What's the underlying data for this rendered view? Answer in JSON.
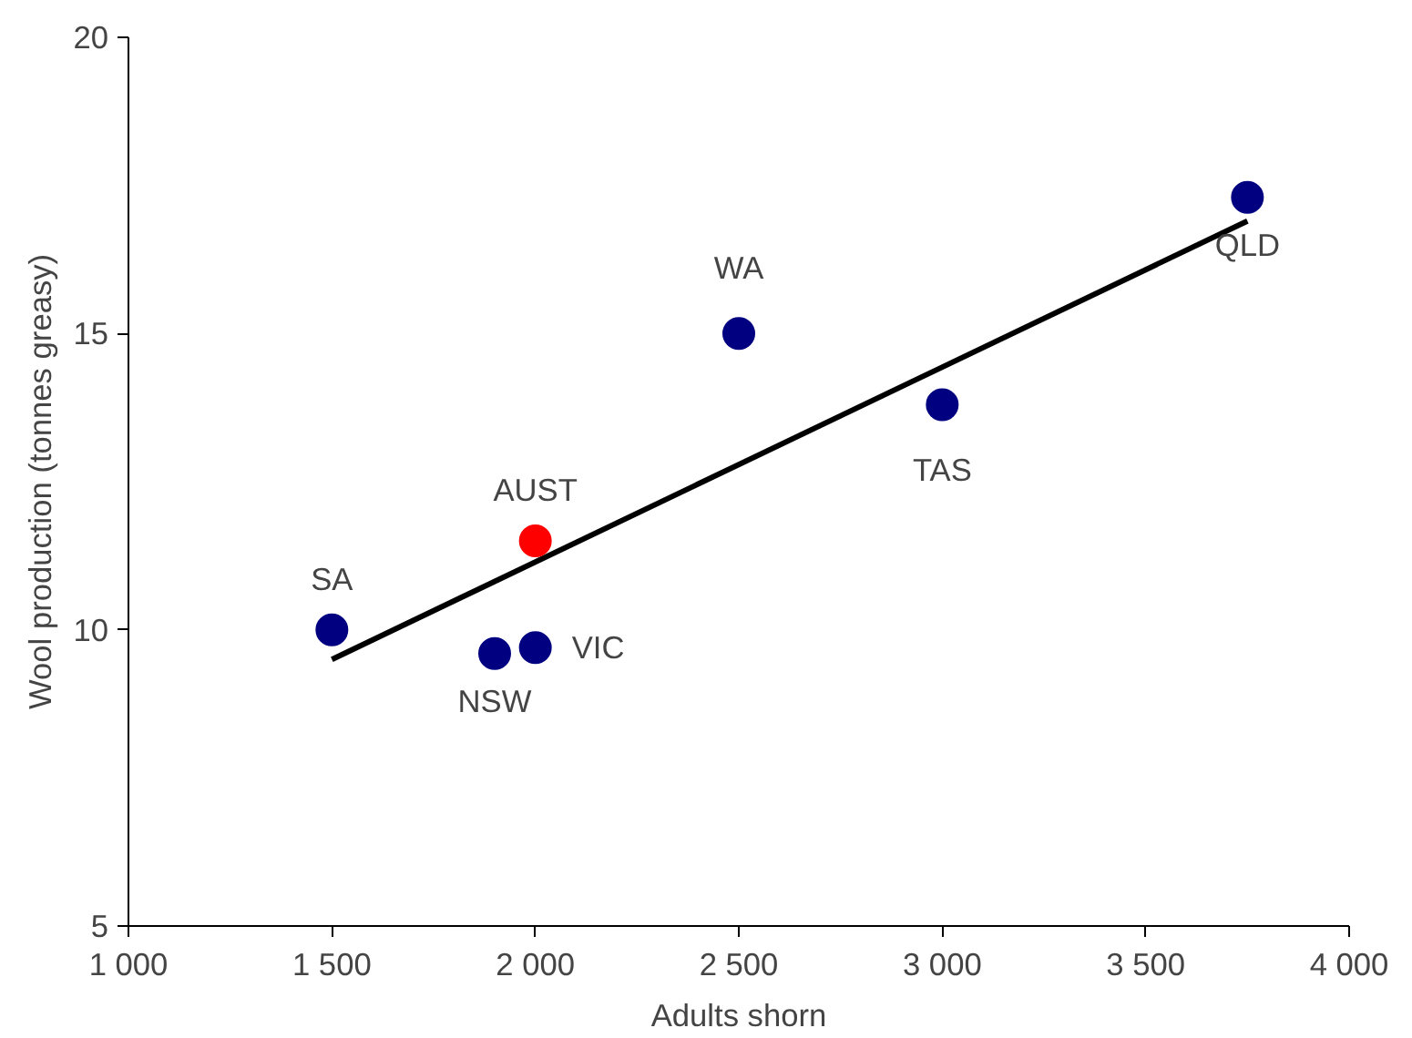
{
  "chart_data": {
    "type": "scatter",
    "xlabel": "Adults shorn",
    "ylabel": "Wool production (tonnes greasy)",
    "xlim": [
      1000,
      4000
    ],
    "ylim": [
      5,
      20
    ],
    "xticks": [
      {
        "value": 1000,
        "label": "1 000"
      },
      {
        "value": 1500,
        "label": "1 500"
      },
      {
        "value": 2000,
        "label": "2 000"
      },
      {
        "value": 2500,
        "label": "2 500"
      },
      {
        "value": 3000,
        "label": "3 000"
      },
      {
        "value": 3500,
        "label": "3 500"
      },
      {
        "value": 4000,
        "label": "4 000"
      }
    ],
    "yticks": [
      5,
      10,
      15,
      20
    ],
    "grid": false,
    "marker": "circle",
    "series": [
      {
        "type": "line",
        "marker": "none",
        "color": "#000000",
        "x": [
          1500,
          3750
        ],
        "values": [
          9.5,
          16.9
        ]
      },
      {
        "color": "#000080",
        "x": [
          1500,
          1900,
          2000,
          2500,
          3000,
          3750
        ],
        "values": [
          10.0,
          9.6,
          9.7,
          15.0,
          13.8,
          17.3
        ]
      },
      {
        "color": "#ff0000",
        "x": [
          2000
        ],
        "values": [
          11.5
        ]
      }
    ],
    "annotations": [
      {
        "text": "SA",
        "x": 1500,
        "y": 10.0
      },
      {
        "text": "NSW",
        "x": 1900,
        "y": 9.6
      },
      {
        "text": "VIC",
        "x": 2000,
        "y": 9.7
      },
      {
        "text": "AUST",
        "x": 2000,
        "y": 11.5
      },
      {
        "text": "WA",
        "x": 2500,
        "y": 15.0
      },
      {
        "text": "TAS",
        "x": 3000,
        "y": 13.8
      },
      {
        "text": "QLD",
        "x": 3750,
        "y": 17.3
      }
    ]
  }
}
